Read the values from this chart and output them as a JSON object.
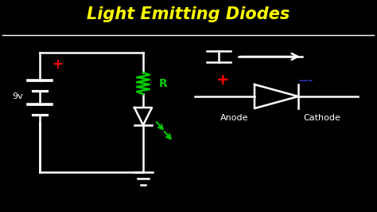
{
  "title": "Light Emitting Diodes",
  "title_color": "#FFFF00",
  "background_color": "#000000",
  "line_color": "#FFFFFF",
  "red_color": "#FF0000",
  "green_color": "#00CC00",
  "blue_color": "#3333CC",
  "battery_label": "9v",
  "resistor_label": "R",
  "anode_label": "Anode",
  "cathode_label": "Cathode"
}
